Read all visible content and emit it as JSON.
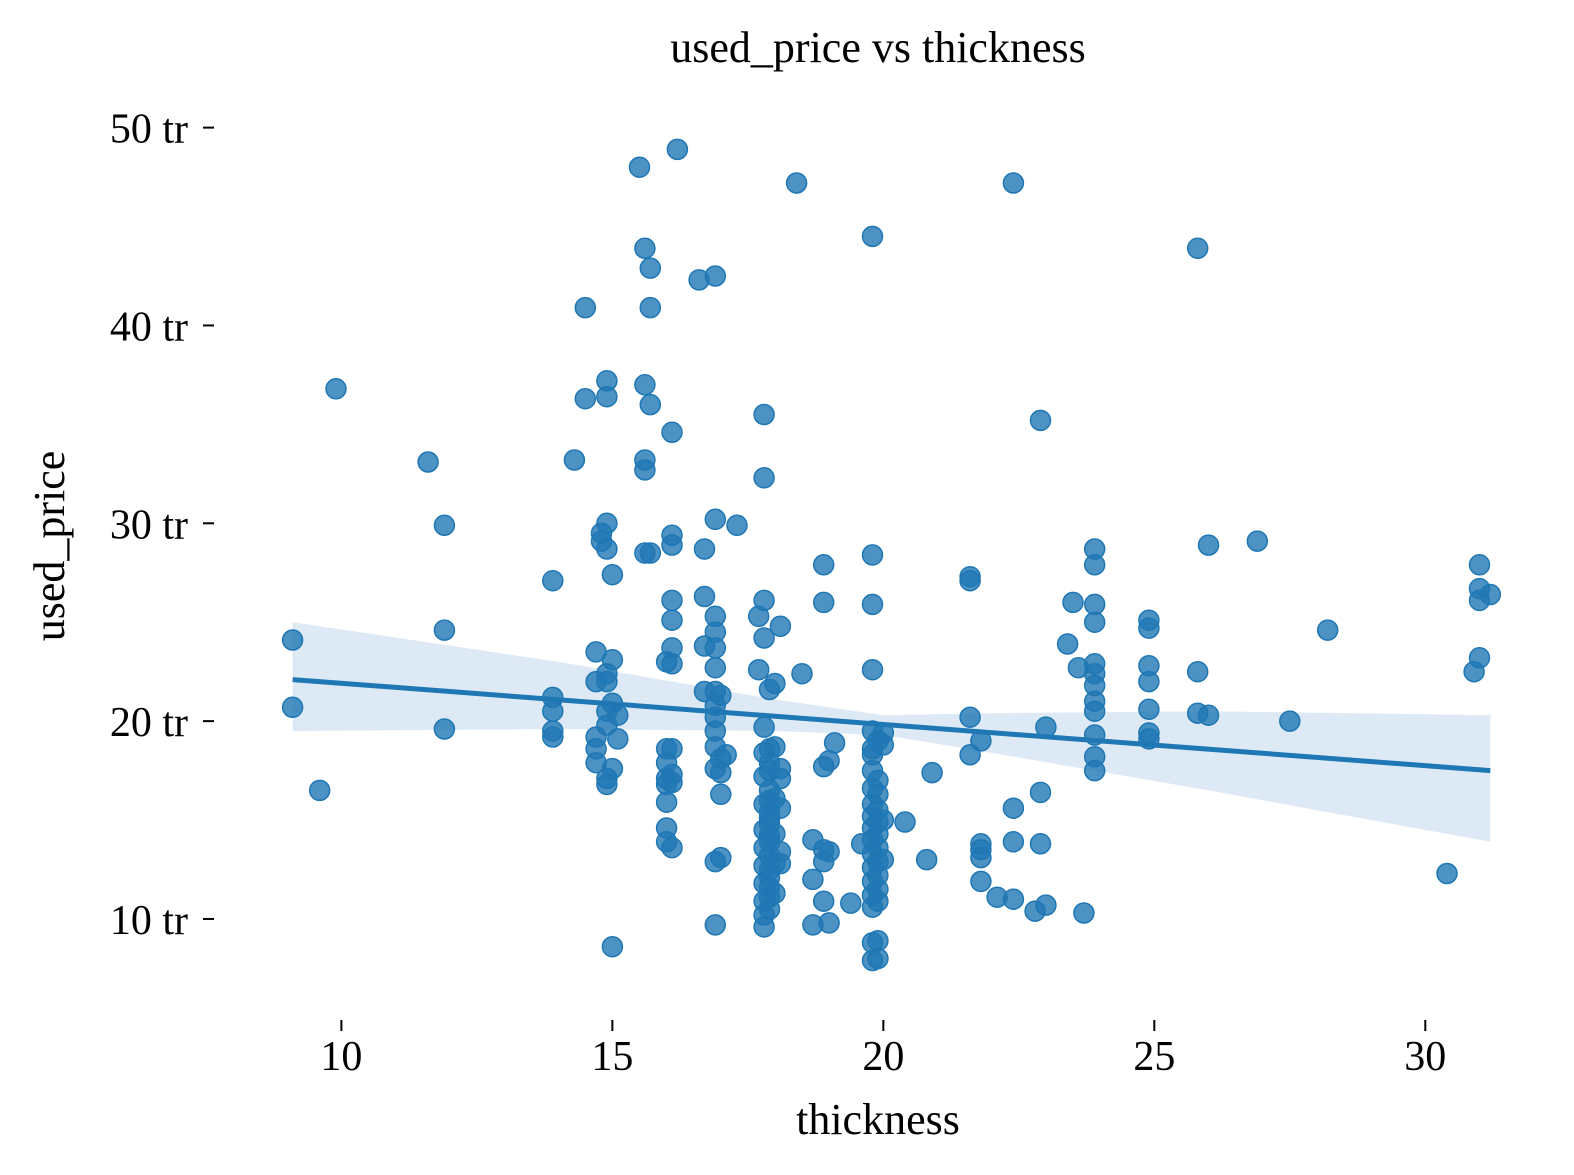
{
  "chart_data": {
    "type": "scatter",
    "title": "used_price vs thickness",
    "xlabel": "thickness",
    "ylabel": "used_price",
    "xlim": [
      8,
      31.6
    ],
    "ylim": [
      5.5,
      51.8
    ],
    "x_ticks": [
      10,
      15,
      20,
      25,
      30
    ],
    "x_tick_labels": [
      "10",
      "15",
      "20",
      "25",
      "30"
    ],
    "y_ticks": [
      10,
      20,
      30,
      40,
      50
    ],
    "y_tick_labels": [
      "10 tr",
      "20 tr",
      "30 tr",
      "40 tr",
      "50 tr"
    ],
    "grid": false,
    "colors": {
      "points": "#1f77b4",
      "line": "#1f77b4",
      "band": "#c6dbef"
    },
    "regression": {
      "x": [
        9.1,
        31.2
      ],
      "y": [
        22.1,
        17.5
      ],
      "ci_upper": [
        [
          9.1,
          25.0
        ],
        [
          14,
          23.0
        ],
        [
          18,
          21.1
        ],
        [
          20,
          20.3
        ],
        [
          22,
          20.4
        ],
        [
          26,
          20.5
        ],
        [
          31.2,
          20.3
        ]
      ],
      "ci_lower": [
        [
          9.1,
          19.5
        ],
        [
          14,
          19.6
        ],
        [
          18,
          19.5
        ],
        [
          20,
          19.3
        ],
        [
          22,
          18.4
        ],
        [
          26,
          16.5
        ],
        [
          31.2,
          13.9
        ]
      ]
    },
    "points": [
      [
        9.1,
        24.1
      ],
      [
        9.1,
        20.7
      ],
      [
        9.6,
        16.5
      ],
      [
        9.9,
        36.8
      ],
      [
        11.6,
        33.1
      ],
      [
        11.9,
        29.9
      ],
      [
        11.9,
        24.6
      ],
      [
        11.9,
        19.6
      ],
      [
        13.9,
        27.1
      ],
      [
        13.9,
        21.2
      ],
      [
        13.9,
        20.5
      ],
      [
        13.9,
        19.5
      ],
      [
        13.9,
        19.2
      ],
      [
        14.3,
        33.2
      ],
      [
        14.5,
        40.9
      ],
      [
        14.5,
        36.3
      ],
      [
        14.7,
        23.5
      ],
      [
        14.7,
        22.0
      ],
      [
        14.7,
        19.2
      ],
      [
        14.7,
        18.6
      ],
      [
        14.7,
        17.9
      ],
      [
        14.8,
        29.5
      ],
      [
        14.8,
        29.1
      ],
      [
        14.9,
        30.0
      ],
      [
        14.9,
        28.7
      ],
      [
        14.9,
        37.2
      ],
      [
        14.9,
        36.4
      ],
      [
        14.9,
        22.4
      ],
      [
        14.9,
        22.0
      ],
      [
        14.9,
        20.5
      ],
      [
        14.9,
        19.8
      ],
      [
        14.9,
        17.1
      ],
      [
        14.9,
        16.8
      ],
      [
        15.0,
        27.4
      ],
      [
        15.0,
        23.1
      ],
      [
        15.0,
        20.9
      ],
      [
        15.0,
        17.6
      ],
      [
        15.0,
        8.6
      ],
      [
        15.1,
        20.3
      ],
      [
        15.1,
        19.1
      ],
      [
        15.5,
        48.0
      ],
      [
        15.6,
        43.9
      ],
      [
        15.6,
        37.0
      ],
      [
        15.6,
        33.2
      ],
      [
        15.6,
        32.7
      ],
      [
        15.6,
        28.5
      ],
      [
        15.7,
        42.9
      ],
      [
        15.7,
        40.9
      ],
      [
        15.7,
        36.0
      ],
      [
        15.7,
        28.5
      ],
      [
        16.0,
        23.0
      ],
      [
        16.0,
        18.6
      ],
      [
        16.0,
        17.9
      ],
      [
        16.0,
        17.1
      ],
      [
        16.0,
        16.8
      ],
      [
        16.0,
        15.9
      ],
      [
        16.0,
        14.6
      ],
      [
        16.0,
        13.9
      ],
      [
        16.1,
        34.6
      ],
      [
        16.1,
        29.4
      ],
      [
        16.1,
        28.9
      ],
      [
        16.1,
        26.1
      ],
      [
        16.1,
        25.1
      ],
      [
        16.1,
        23.7
      ],
      [
        16.1,
        22.9
      ],
      [
        16.1,
        18.6
      ],
      [
        16.1,
        17.3
      ],
      [
        16.1,
        16.9
      ],
      [
        16.1,
        13.6
      ],
      [
        16.2,
        48.9
      ],
      [
        16.6,
        42.3
      ],
      [
        16.7,
        28.7
      ],
      [
        16.7,
        26.3
      ],
      [
        16.7,
        23.8
      ],
      [
        16.7,
        21.5
      ],
      [
        16.9,
        42.5
      ],
      [
        16.9,
        30.2
      ],
      [
        16.9,
        25.3
      ],
      [
        16.9,
        24.5
      ],
      [
        16.9,
        23.7
      ],
      [
        16.9,
        22.7
      ],
      [
        16.9,
        21.5
      ],
      [
        16.9,
        20.8
      ],
      [
        16.9,
        20.2
      ],
      [
        16.9,
        19.5
      ],
      [
        16.9,
        18.7
      ],
      [
        16.9,
        17.6
      ],
      [
        16.9,
        12.9
      ],
      [
        16.9,
        9.7
      ],
      [
        17.0,
        21.3
      ],
      [
        17.0,
        18.1
      ],
      [
        17.0,
        17.4
      ],
      [
        17.0,
        16.3
      ],
      [
        17.0,
        13.1
      ],
      [
        17.1,
        18.3
      ],
      [
        17.3,
        29.9
      ],
      [
        17.7,
        25.3
      ],
      [
        17.7,
        22.6
      ],
      [
        17.8,
        35.5
      ],
      [
        17.8,
        32.3
      ],
      [
        17.8,
        26.1
      ],
      [
        17.8,
        24.2
      ],
      [
        17.8,
        19.7
      ],
      [
        17.8,
        18.4
      ],
      [
        17.8,
        17.2
      ],
      [
        17.8,
        15.8
      ],
      [
        17.8,
        14.5
      ],
      [
        17.8,
        13.6
      ],
      [
        17.8,
        12.7
      ],
      [
        17.8,
        11.8
      ],
      [
        17.8,
        10.9
      ],
      [
        17.8,
        10.2
      ],
      [
        17.8,
        9.6
      ],
      [
        17.9,
        21.6
      ],
      [
        17.9,
        18.6
      ],
      [
        17.9,
        17.9
      ],
      [
        17.9,
        17.5
      ],
      [
        17.9,
        16.5
      ],
      [
        17.9,
        16.0
      ],
      [
        17.9,
        15.4
      ],
      [
        17.9,
        15.1
      ],
      [
        17.9,
        14.8
      ],
      [
        17.9,
        14.2
      ],
      [
        17.9,
        13.9
      ],
      [
        17.9,
        13.2
      ],
      [
        17.9,
        12.5
      ],
      [
        17.9,
        12.1
      ],
      [
        17.9,
        11.6
      ],
      [
        17.9,
        11.1
      ],
      [
        17.9,
        10.5
      ],
      [
        18.0,
        21.9
      ],
      [
        18.0,
        18.7
      ],
      [
        18.0,
        16.1
      ],
      [
        18.0,
        14.3
      ],
      [
        18.0,
        12.8
      ],
      [
        18.0,
        11.3
      ],
      [
        18.1,
        24.8
      ],
      [
        18.1,
        17.6
      ],
      [
        18.1,
        17.1
      ],
      [
        18.1,
        15.6
      ],
      [
        18.1,
        13.4
      ],
      [
        18.1,
        12.8
      ],
      [
        18.4,
        47.2
      ],
      [
        18.5,
        22.4
      ],
      [
        18.7,
        14.0
      ],
      [
        18.7,
        12.0
      ],
      [
        18.7,
        9.7
      ],
      [
        18.9,
        27.9
      ],
      [
        18.9,
        26.0
      ],
      [
        18.9,
        17.7
      ],
      [
        18.9,
        13.5
      ],
      [
        18.9,
        12.9
      ],
      [
        18.9,
        10.9
      ],
      [
        19.0,
        18.0
      ],
      [
        19.0,
        13.4
      ],
      [
        19.0,
        9.8
      ],
      [
        19.1,
        18.9
      ],
      [
        19.4,
        10.8
      ],
      [
        19.6,
        13.8
      ],
      [
        19.8,
        44.5
      ],
      [
        19.8,
        28.4
      ],
      [
        19.8,
        25.9
      ],
      [
        19.8,
        22.6
      ],
      [
        19.8,
        19.5
      ],
      [
        19.8,
        18.6
      ],
      [
        19.8,
        18.3
      ],
      [
        19.8,
        17.5
      ],
      [
        19.8,
        16.6
      ],
      [
        19.8,
        15.8
      ],
      [
        19.8,
        15.2
      ],
      [
        19.8,
        14.6
      ],
      [
        19.8,
        14.0
      ],
      [
        19.8,
        13.3
      ],
      [
        19.8,
        12.6
      ],
      [
        19.8,
        11.9
      ],
      [
        19.8,
        11.2
      ],
      [
        19.8,
        10.6
      ],
      [
        19.8,
        8.8
      ],
      [
        19.8,
        7.9
      ],
      [
        19.9,
        19.0
      ],
      [
        19.9,
        17.0
      ],
      [
        19.9,
        16.3
      ],
      [
        19.9,
        15.5
      ],
      [
        19.9,
        14.9
      ],
      [
        19.9,
        14.3
      ],
      [
        19.9,
        13.6
      ],
      [
        19.9,
        12.9
      ],
      [
        19.9,
        12.2
      ],
      [
        19.9,
        11.5
      ],
      [
        19.9,
        10.9
      ],
      [
        19.9,
        8.9
      ],
      [
        19.9,
        8.0
      ],
      [
        20.0,
        18.8
      ],
      [
        20.0,
        19.4
      ],
      [
        20.0,
        13.0
      ],
      [
        20.0,
        15.0
      ],
      [
        20.4,
        14.9
      ],
      [
        20.8,
        13.0
      ],
      [
        20.9,
        17.4
      ],
      [
        21.6,
        27.3
      ],
      [
        21.6,
        27.1
      ],
      [
        21.6,
        20.2
      ],
      [
        21.6,
        18.3
      ],
      [
        21.8,
        19.0
      ],
      [
        21.8,
        13.8
      ],
      [
        21.8,
        13.5
      ],
      [
        21.8,
        13.1
      ],
      [
        21.8,
        11.9
      ],
      [
        22.1,
        11.1
      ],
      [
        22.4,
        15.6
      ],
      [
        22.4,
        13.9
      ],
      [
        22.4,
        11.0
      ],
      [
        22.4,
        47.2
      ],
      [
        22.8,
        10.4
      ],
      [
        22.9,
        35.2
      ],
      [
        22.9,
        16.4
      ],
      [
        22.9,
        13.8
      ],
      [
        23.0,
        19.7
      ],
      [
        23.0,
        10.7
      ],
      [
        23.4,
        23.9
      ],
      [
        23.5,
        26.0
      ],
      [
        23.6,
        22.7
      ],
      [
        23.7,
        10.3
      ],
      [
        23.9,
        28.7
      ],
      [
        23.9,
        27.9
      ],
      [
        23.9,
        25.9
      ],
      [
        23.9,
        25.0
      ],
      [
        23.9,
        22.9
      ],
      [
        23.9,
        22.4
      ],
      [
        23.9,
        21.8
      ],
      [
        23.9,
        21.0
      ],
      [
        23.9,
        20.5
      ],
      [
        23.9,
        19.3
      ],
      [
        23.9,
        18.2
      ],
      [
        23.9,
        17.5
      ],
      [
        24.9,
        25.1
      ],
      [
        24.9,
        24.7
      ],
      [
        24.9,
        22.8
      ],
      [
        24.9,
        22.0
      ],
      [
        24.9,
        20.6
      ],
      [
        24.9,
        19.4
      ],
      [
        24.9,
        19.1
      ],
      [
        25.8,
        43.9
      ],
      [
        25.8,
        22.5
      ],
      [
        25.8,
        20.4
      ],
      [
        26.0,
        28.9
      ],
      [
        26.0,
        20.3
      ],
      [
        26.9,
        29.1
      ],
      [
        27.5,
        20.0
      ],
      [
        28.2,
        24.6
      ],
      [
        30.4,
        12.3
      ],
      [
        31.0,
        27.9
      ],
      [
        31.0,
        26.7
      ],
      [
        31.0,
        26.1
      ],
      [
        31.0,
        23.2
      ],
      [
        30.9,
        22.5
      ],
      [
        31.2,
        26.4
      ]
    ]
  }
}
